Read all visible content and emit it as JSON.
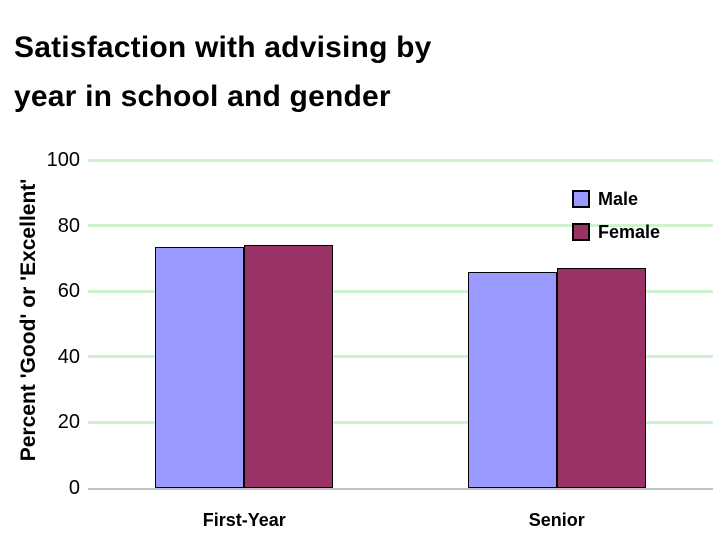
{
  "title": "Satisfaction with advising by\nyear in school and gender",
  "chart_data": {
    "type": "bar",
    "title": "Satisfaction with advising by year in school and gender",
    "categories": [
      "First-Year",
      "Senior"
    ],
    "series": [
      {
        "name": "Male",
        "color": "#9999ff",
        "values": [
          73.4,
          65.9
        ]
      },
      {
        "name": "Female",
        "color": "#993366",
        "values": [
          74.2,
          67.0
        ]
      }
    ],
    "xlabel": "",
    "ylabel": "Percent 'Good' or 'Excellent'",
    "ylim": [
      0,
      100
    ],
    "yticks": [
      0,
      20,
      40,
      60,
      80,
      100
    ],
    "grid": true,
    "gridline_color": "#cff2cf",
    "axis_line_color": "#bfc3c5",
    "bar_border_color": "#000000",
    "legend_position": "upper-right",
    "legend_labels": [
      "Male",
      "Female"
    ]
  }
}
